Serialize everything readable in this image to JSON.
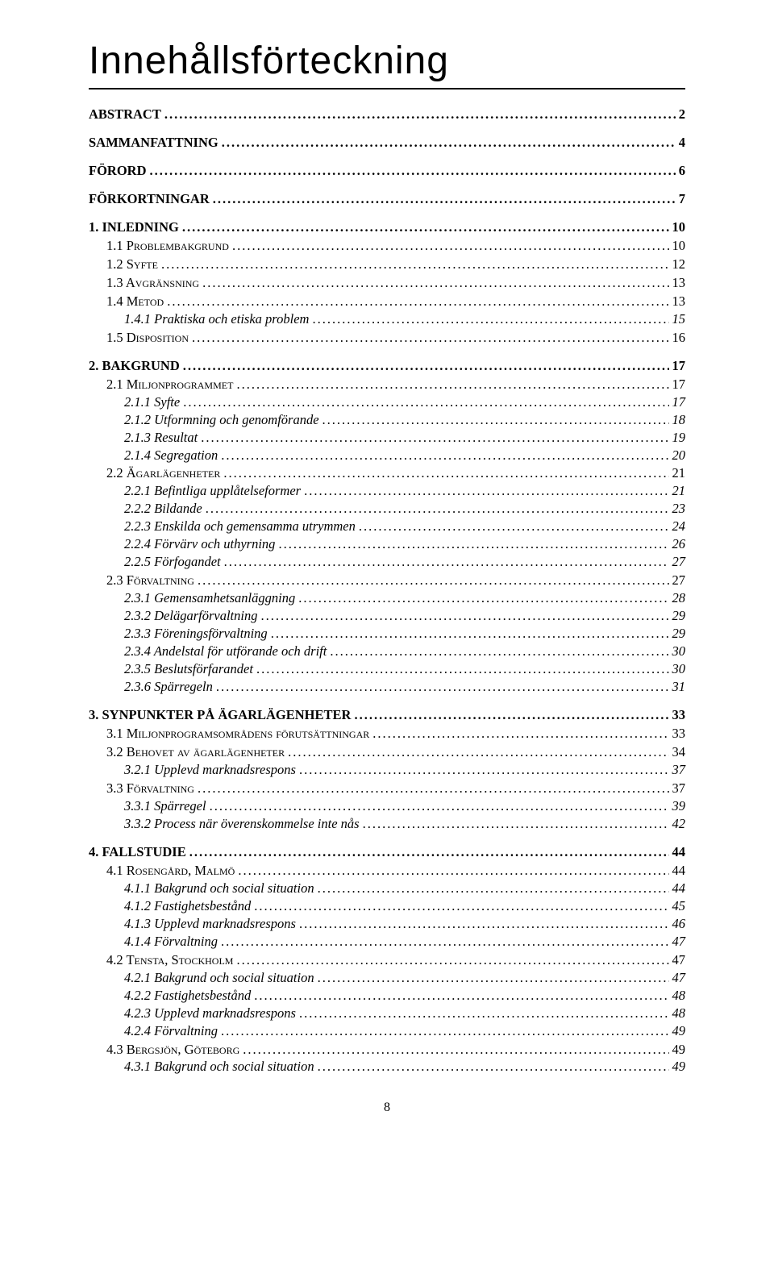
{
  "title": "Innehållsförteckning",
  "page_number": "8",
  "typography": {
    "title_font": "Gill Sans / sans-serif",
    "title_fontsize_pt": 36,
    "body_font": "Times New Roman",
    "body_fontsize_pt": 12,
    "leader_char": ".",
    "colors": {
      "text": "#000000",
      "background": "#ffffff",
      "rule": "#000000"
    }
  },
  "toc": [
    {
      "level": "A",
      "label": "ABSTRACT",
      "page": "2"
    },
    {
      "level": "A",
      "label": "SAMMANFATTNING",
      "page": "4"
    },
    {
      "level": "A",
      "label": "FÖRORD",
      "page": "6"
    },
    {
      "level": "A",
      "label": "FÖRKORTNINGAR",
      "page": "7"
    },
    {
      "level": "A",
      "label": "1. INLEDNING",
      "page": "10"
    },
    {
      "level": "B",
      "label": "1.1 Problembakgrund",
      "page": "10"
    },
    {
      "level": "B",
      "label": "1.2 Syfte",
      "page": "12"
    },
    {
      "level": "B",
      "label": "1.3 Avgränsning",
      "page": "13"
    },
    {
      "level": "B",
      "label": "1.4 Metod",
      "page": "13"
    },
    {
      "level": "C",
      "label": "1.4.1 Praktiska och etiska problem",
      "page": "15"
    },
    {
      "level": "B",
      "label": "1.5 Disposition",
      "page": "16"
    },
    {
      "level": "A",
      "label": "2. BAKGRUND",
      "page": "17"
    },
    {
      "level": "B",
      "label": "2.1 Miljonprogrammet",
      "page": "17"
    },
    {
      "level": "C",
      "label": "2.1.1 Syfte",
      "page": "17"
    },
    {
      "level": "C",
      "label": "2.1.2 Utformning och genomförande",
      "page": "18"
    },
    {
      "level": "C",
      "label": "2.1.3 Resultat",
      "page": "19"
    },
    {
      "level": "C",
      "label": "2.1.4 Segregation",
      "page": "20"
    },
    {
      "level": "B",
      "label": "2.2 Ägarlägenheter",
      "page": "21"
    },
    {
      "level": "C",
      "label": "2.2.1 Befintliga upplåtelseformer",
      "page": "21"
    },
    {
      "level": "C",
      "label": "2.2.2 Bildande",
      "page": "23"
    },
    {
      "level": "C",
      "label": "2.2.3 Enskilda och gemensamma utrymmen",
      "page": "24"
    },
    {
      "level": "C",
      "label": "2.2.4 Förvärv och uthyrning",
      "page": "26"
    },
    {
      "level": "C",
      "label": "2.2.5 Förfogandet",
      "page": "27"
    },
    {
      "level": "B",
      "label": "2.3 Förvaltning",
      "page": "27"
    },
    {
      "level": "C",
      "label": "2.3.1 Gemensamhetsanläggning",
      "page": "28"
    },
    {
      "level": "C",
      "label": "2.3.2 Delägarförvaltning",
      "page": "29"
    },
    {
      "level": "C",
      "label": "2.3.3 Föreningsförvaltning",
      "page": "29"
    },
    {
      "level": "C",
      "label": "2.3.4 Andelstal för utförande och drift",
      "page": "30"
    },
    {
      "level": "C",
      "label": "2.3.5 Beslutsförfarandet",
      "page": "30"
    },
    {
      "level": "C",
      "label": "2.3.6 Spärregeln",
      "page": "31"
    },
    {
      "level": "A",
      "label": "3.   SYNPUNKTER PÅ ÄGARLÄGENHETER",
      "page": "33"
    },
    {
      "level": "B",
      "label": "3.1 Miljonprogramsområdens förutsättningar",
      "page": "33"
    },
    {
      "level": "B",
      "label": "3.2 Behovet av ägarlägenheter",
      "page": "34"
    },
    {
      "level": "C",
      "label": "3.2.1 Upplevd marknadsrespons",
      "page": "37"
    },
    {
      "level": "B",
      "label": "3.3 Förvaltning",
      "page": "37"
    },
    {
      "level": "C",
      "label": "3.3.1 Spärregel",
      "page": "39"
    },
    {
      "level": "C",
      "label": "3.3.2 Process när överenskommelse inte nås",
      "page": "42"
    },
    {
      "level": "A",
      "label": "4. FALLSTUDIE",
      "page": "44"
    },
    {
      "level": "B",
      "label": "4.1 Rosengård, Malmö",
      "page": "44"
    },
    {
      "level": "C",
      "label": "4.1.1 Bakgrund och social situation",
      "page": "44"
    },
    {
      "level": "C",
      "label": "4.1.2 Fastighetsbestånd",
      "page": "45"
    },
    {
      "level": "C",
      "label": "4.1.3 Upplevd marknadsrespons",
      "page": "46"
    },
    {
      "level": "C",
      "label": "4.1.4 Förvaltning",
      "page": "47"
    },
    {
      "level": "B",
      "label": "4.2 Tensta, Stockholm",
      "page": "47"
    },
    {
      "level": "C",
      "label": "4.2.1 Bakgrund och social situation",
      "page": "47"
    },
    {
      "level": "C",
      "label": "4.2.2 Fastighetsbestånd",
      "page": "48"
    },
    {
      "level": "C",
      "label": "4.2.3 Upplevd marknadsrespons",
      "page": "48"
    },
    {
      "level": "C",
      "label": "4.2.4 Förvaltning",
      "page": "49"
    },
    {
      "level": "B",
      "label": "4.3 Bergsjön, Göteborg",
      "page": "49"
    },
    {
      "level": "C",
      "label": "4.3.1 Bakgrund och social situation",
      "page": "49"
    }
  ]
}
